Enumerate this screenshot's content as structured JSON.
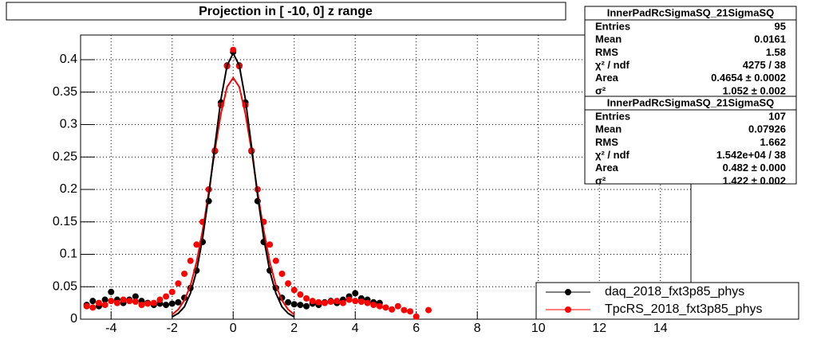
{
  "chart_data": {
    "type": "scatter",
    "title": "Projection in [ -10,   0] z range",
    "xlim": [
      -5,
      15
    ],
    "xticks": [
      -4,
      -2,
      0,
      2,
      4,
      6,
      8,
      10,
      12,
      14
    ],
    "ylim": [
      0,
      0.438
    ],
    "yticks": [
      0,
      0.05,
      0.1,
      0.15,
      0.2,
      0.25,
      0.3,
      0.35,
      0.4
    ],
    "grid": true,
    "legend": "bottom-right",
    "series": [
      {
        "name": "daq_2018_fxt3p85_phys",
        "color": "#000000",
        "x": [
          -4.8,
          -4.6,
          -4.4,
          -4.2,
          -4.0,
          -3.8,
          -3.6,
          -3.4,
          -3.2,
          -3.0,
          -2.8,
          -2.6,
          -2.4,
          -2.2,
          -2.0,
          -1.8,
          -1.6,
          -1.4,
          -1.2,
          -1.0,
          -0.8,
          -0.6,
          -0.4,
          -0.2,
          0,
          0.2,
          0.4,
          0.6,
          0.8,
          1.0,
          1.2,
          1.4,
          1.6,
          1.8,
          2.0,
          2.2,
          2.4,
          2.6,
          2.8,
          3.0,
          3.2,
          3.4,
          3.6,
          3.8,
          4.0,
          4.2,
          4.4,
          4.6,
          4.8
        ],
        "values": [
          0.022,
          0.028,
          0.02,
          0.03,
          0.042,
          0.03,
          0.025,
          0.03,
          0.035,
          0.028,
          0.025,
          0.022,
          0.024,
          0.022,
          0.024,
          0.026,
          0.033,
          0.048,
          0.075,
          0.119,
          0.182,
          0.259,
          0.334,
          0.391,
          0.412,
          0.391,
          0.334,
          0.259,
          0.182,
          0.119,
          0.075,
          0.048,
          0.033,
          0.026,
          0.023,
          0.022,
          0.02,
          0.024,
          0.022,
          0.026,
          0.028,
          0.025,
          0.03,
          0.035,
          0.04,
          0.032,
          0.03,
          0.026,
          0.025
        ]
      },
      {
        "name": "TpcRS_2018_fxt3p85_phys",
        "color": "#ff0000",
        "x": [
          -4.8,
          -4.6,
          -4.4,
          -4.2,
          -4.0,
          -3.8,
          -3.6,
          -3.4,
          -3.2,
          -3.0,
          -2.8,
          -2.6,
          -2.4,
          -2.2,
          -2.0,
          -1.8,
          -1.6,
          -1.4,
          -1.2,
          -1.0,
          -0.8,
          -0.6,
          -0.4,
          -0.2,
          0,
          0.2,
          0.4,
          0.6,
          0.8,
          1.0,
          1.2,
          1.4,
          1.6,
          1.8,
          2.0,
          2.2,
          2.4,
          2.6,
          2.8,
          3.0,
          3.2,
          3.4,
          3.6,
          3.8,
          4.0,
          4.2,
          4.4,
          4.6,
          4.8,
          5.0,
          5.2,
          5.4,
          5.6,
          5.8,
          6.0,
          6.4
        ],
        "values": [
          0.02,
          0.018,
          0.025,
          0.022,
          0.028,
          0.025,
          0.03,
          0.028,
          0.027,
          0.022,
          0.024,
          0.025,
          0.03,
          0.035,
          0.042,
          0.055,
          0.07,
          0.09,
          0.115,
          0.15,
          0.2,
          0.26,
          0.33,
          0.39,
          0.415,
          0.39,
          0.33,
          0.26,
          0.2,
          0.15,
          0.115,
          0.09,
          0.07,
          0.055,
          0.045,
          0.038,
          0.032,
          0.028,
          0.026,
          0.025,
          0.027,
          0.028,
          0.025,
          0.03,
          0.028,
          0.027,
          0.025,
          0.022,
          0.02,
          0.018,
          0.015,
          0.02,
          0.014,
          0.012,
          0.004,
          0.014
        ]
      }
    ],
    "fits": [
      {
        "color": "#ff0000",
        "x": [
          -2.0,
          -1.8,
          -1.6,
          -1.4,
          -1.2,
          -1.0,
          -0.8,
          -0.6,
          -0.4,
          -0.2,
          0,
          0.2,
          0.4,
          0.6,
          0.8,
          1.0,
          1.2,
          1.4,
          1.6,
          1.8,
          2.0
        ],
        "values": [
          0.007,
          0.015,
          0.029,
          0.052,
          0.088,
          0.137,
          0.196,
          0.26,
          0.317,
          0.358,
          0.372,
          0.358,
          0.317,
          0.26,
          0.196,
          0.137,
          0.088,
          0.052,
          0.029,
          0.015,
          0.007
        ]
      },
      {
        "color": "#000000",
        "x": [
          -2.0,
          -1.8,
          -1.6,
          -1.4,
          -1.2,
          -1.0,
          -0.8,
          -0.6,
          -0.4,
          -0.2,
          0,
          0.2,
          0.4,
          0.6,
          0.8,
          1.0,
          1.2,
          1.4,
          1.6,
          1.8,
          2.0
        ],
        "values": [
          0.0035,
          0.009,
          0.019,
          0.04,
          0.074,
          0.125,
          0.191,
          0.267,
          0.339,
          0.391,
          0.41,
          0.391,
          0.339,
          0.267,
          0.191,
          0.125,
          0.074,
          0.04,
          0.019,
          0.009,
          0.0035
        ]
      }
    ],
    "stats": [
      {
        "title": "InnerPadRcSigmaSQ_21SigmaSQ",
        "rows": [
          [
            "Entries",
            "95"
          ],
          [
            "Mean",
            "0.0161"
          ],
          [
            "RMS",
            "1.58"
          ],
          [
            "χ² / ndf",
            "4275 / 38"
          ],
          [
            "Area",
            "0.4654 ± 0.0002"
          ],
          [
            "σ²",
            "1.052 ± 0.002"
          ]
        ]
      },
      {
        "title": "InnerPadRcSigmaSQ_21SigmaSQ",
        "rows": [
          [
            "Entries",
            "107"
          ],
          [
            "Mean",
            "0.07926"
          ],
          [
            "RMS",
            "1.662"
          ],
          [
            "χ² / ndf",
            "1.542e+04 / 38"
          ],
          [
            "Area",
            "0.482 ± 0.000"
          ],
          [
            "σ²",
            "1.422 ± 0.002"
          ]
        ]
      }
    ]
  }
}
